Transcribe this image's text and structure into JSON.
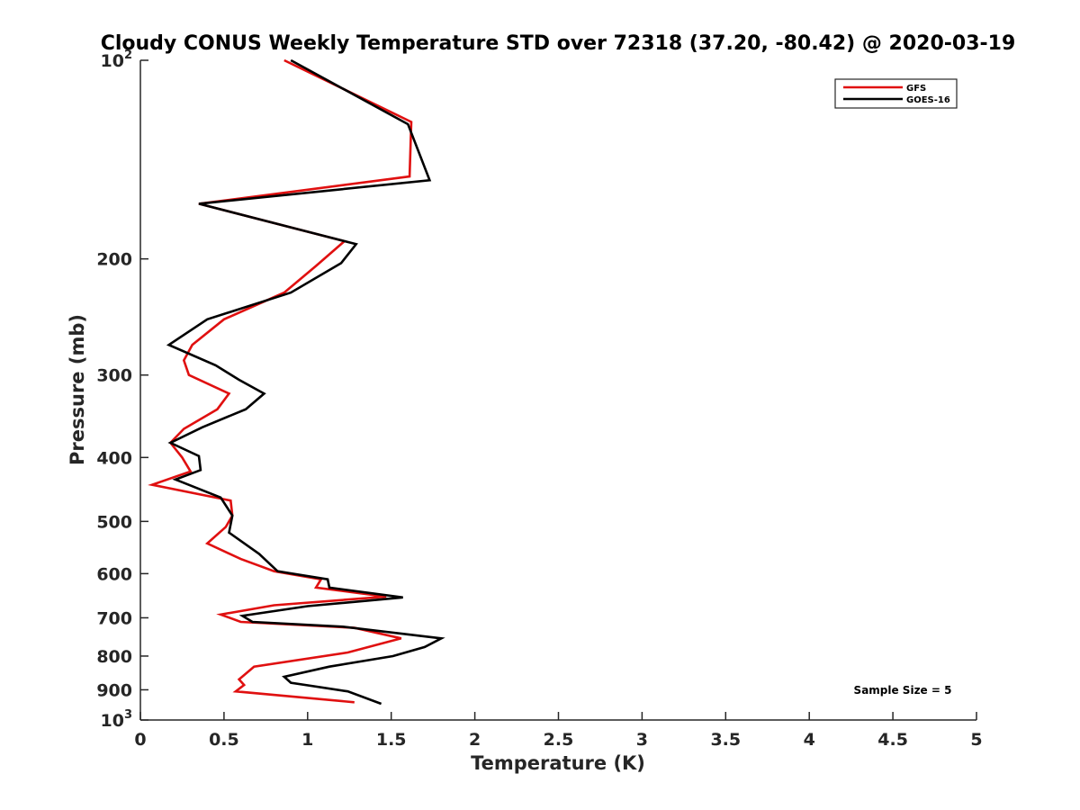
{
  "chart_data": {
    "type": "line",
    "title": "Cloudy CONUS Weekly Temperature STD over 72318 (37.20, -80.42) @ 2020-03-19",
    "xlabel": "Temperature (K)",
    "ylabel": "Pressure (mb)",
    "xlim": [
      0,
      5
    ],
    "ylim": [
      100,
      1000
    ],
    "y_scale": "log",
    "y_reversed": true,
    "x_ticks": [
      0,
      0.5,
      1,
      1.5,
      2,
      2.5,
      3,
      3.5,
      4,
      4.5,
      5
    ],
    "x_tick_labels": [
      "0",
      "0.5",
      "1",
      "1.5",
      "2",
      "2.5",
      "3",
      "3.5",
      "4",
      "4.5",
      "5"
    ],
    "y_ticks": [
      {
        "value": 100,
        "base": "10",
        "exp": "2"
      },
      {
        "value": 200,
        "label": "200"
      },
      {
        "value": 300,
        "label": "300"
      },
      {
        "value": 400,
        "label": "400"
      },
      {
        "value": 500,
        "label": "500"
      },
      {
        "value": 600,
        "label": "600"
      },
      {
        "value": 700,
        "label": "700"
      },
      {
        "value": 800,
        "label": "800"
      },
      {
        "value": 900,
        "label": "900"
      },
      {
        "value": 1000,
        "base": "10",
        "exp": "3"
      }
    ],
    "grid": false,
    "legend_position": "top-right",
    "annotation": "Sample Size = 5",
    "series": [
      {
        "name": "GFS",
        "color": "#e01010",
        "points": [
          [
            0.86,
            100
          ],
          [
            1.62,
            124
          ],
          [
            1.61,
            150
          ],
          [
            0.35,
            165
          ],
          [
            1.22,
            188
          ],
          [
            1.05,
            205
          ],
          [
            0.86,
            225
          ],
          [
            0.5,
            247
          ],
          [
            0.31,
            270
          ],
          [
            0.26,
            285
          ],
          [
            0.29,
            300
          ],
          [
            0.53,
            320
          ],
          [
            0.46,
            338
          ],
          [
            0.26,
            362
          ],
          [
            0.18,
            380
          ],
          [
            0.25,
            400
          ],
          [
            0.3,
            420
          ],
          [
            0.07,
            440
          ],
          [
            0.54,
            465
          ],
          [
            0.55,
            490
          ],
          [
            0.51,
            510
          ],
          [
            0.4,
            540
          ],
          [
            0.6,
            570
          ],
          [
            0.8,
            595
          ],
          [
            1.08,
            612
          ],
          [
            1.05,
            630
          ],
          [
            1.47,
            650
          ],
          [
            0.8,
            670
          ],
          [
            0.48,
            692
          ],
          [
            0.6,
            710
          ],
          [
            1.28,
            725
          ],
          [
            1.56,
            752
          ],
          [
            1.24,
            790
          ],
          [
            0.68,
            830
          ],
          [
            0.59,
            868
          ],
          [
            0.62,
            885
          ],
          [
            0.57,
            905
          ],
          [
            1.28,
            940
          ]
        ]
      },
      {
        "name": "GOES-16",
        "color": "#000000",
        "points": [
          [
            0.9,
            100
          ],
          [
            1.6,
            125
          ],
          [
            1.73,
            152
          ],
          [
            0.35,
            165
          ],
          [
            1.29,
            190
          ],
          [
            1.2,
            203
          ],
          [
            0.9,
            225
          ],
          [
            0.4,
            247
          ],
          [
            0.17,
            270
          ],
          [
            0.45,
            290
          ],
          [
            0.59,
            305
          ],
          [
            0.74,
            320
          ],
          [
            0.63,
            338
          ],
          [
            0.37,
            360
          ],
          [
            0.18,
            380
          ],
          [
            0.35,
            398
          ],
          [
            0.36,
            418
          ],
          [
            0.21,
            432
          ],
          [
            0.48,
            460
          ],
          [
            0.55,
            490
          ],
          [
            0.53,
            520
          ],
          [
            0.71,
            560
          ],
          [
            0.82,
            595
          ],
          [
            1.12,
            612
          ],
          [
            1.13,
            630
          ],
          [
            1.57,
            652
          ],
          [
            1.0,
            672
          ],
          [
            0.61,
            695
          ],
          [
            0.67,
            710
          ],
          [
            1.21,
            722
          ],
          [
            1.8,
            752
          ],
          [
            1.7,
            775
          ],
          [
            1.51,
            800
          ],
          [
            1.13,
            830
          ],
          [
            0.86,
            860
          ],
          [
            0.9,
            878
          ],
          [
            1.24,
            905
          ],
          [
            1.44,
            945
          ]
        ]
      }
    ]
  }
}
